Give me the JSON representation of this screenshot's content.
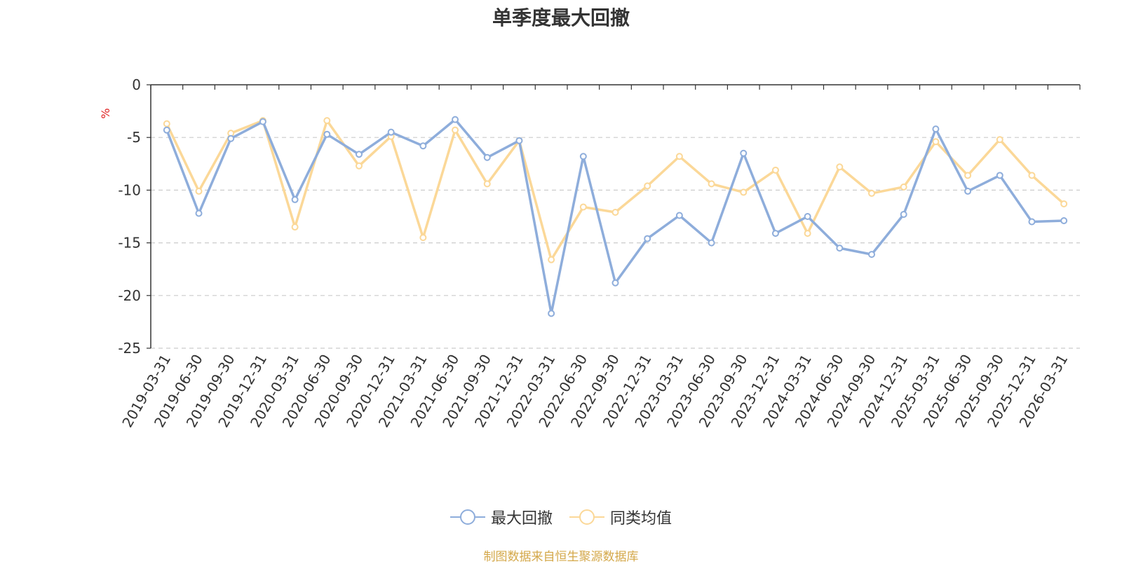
{
  "chart_data": {
    "type": "line",
    "title": "单季度最大回撤",
    "ylabel": "%",
    "xlabel": "",
    "ylim": [
      -25,
      0
    ],
    "yticks": [
      0,
      -5,
      -10,
      -15,
      -20,
      -25
    ],
    "grid": true,
    "legend_position": "bottom",
    "categories": [
      "2019-03-31",
      "2019-06-30",
      "2019-09-30",
      "2019-12-31",
      "2020-03-31",
      "2020-06-30",
      "2020-09-30",
      "2020-12-31",
      "2021-03-31",
      "2021-06-30",
      "2021-09-30",
      "2021-12-31",
      "2022-03-31",
      "2022-06-30",
      "2022-09-30",
      "2022-12-31",
      "2023-03-31",
      "2023-06-30",
      "2023-09-30",
      "2023-12-31",
      "2024-03-31",
      "2024-06-30",
      "2024-09-30",
      "2024-12-31",
      "2025-03-31",
      "2025-06-30",
      "2025-09-30",
      "2025-12-31",
      "2026-03-31"
    ],
    "series": [
      {
        "name": "最大回撤",
        "color": "#8eaddb",
        "values": [
          -4.3,
          -12.2,
          -5.1,
          -3.5,
          -10.9,
          -4.7,
          -6.6,
          -4.5,
          -5.8,
          -3.3,
          -6.9,
          -5.3,
          -21.7,
          -6.8,
          -18.8,
          -14.6,
          -12.4,
          -15.0,
          -6.5,
          -14.1,
          -12.5,
          -15.5,
          -16.1,
          -12.3,
          -4.2,
          -10.1,
          -8.6,
          -13.0,
          -12.9
        ]
      },
      {
        "name": "同类均值",
        "color": "#fbd898",
        "values": [
          -3.7,
          -10.1,
          -4.6,
          -3.4,
          -13.5,
          -3.4,
          -7.7,
          -4.9,
          -14.5,
          -4.3,
          -9.4,
          -5.3,
          -16.6,
          -11.6,
          -12.1,
          -9.6,
          -6.8,
          -9.4,
          -10.2,
          -8.1,
          -14.1,
          -7.8,
          -10.3,
          -9.7,
          -5.4,
          -8.6,
          -5.2,
          -8.6,
          -11.3
        ]
      }
    ]
  },
  "source_note": "制图数据来自恒生聚源数据库"
}
